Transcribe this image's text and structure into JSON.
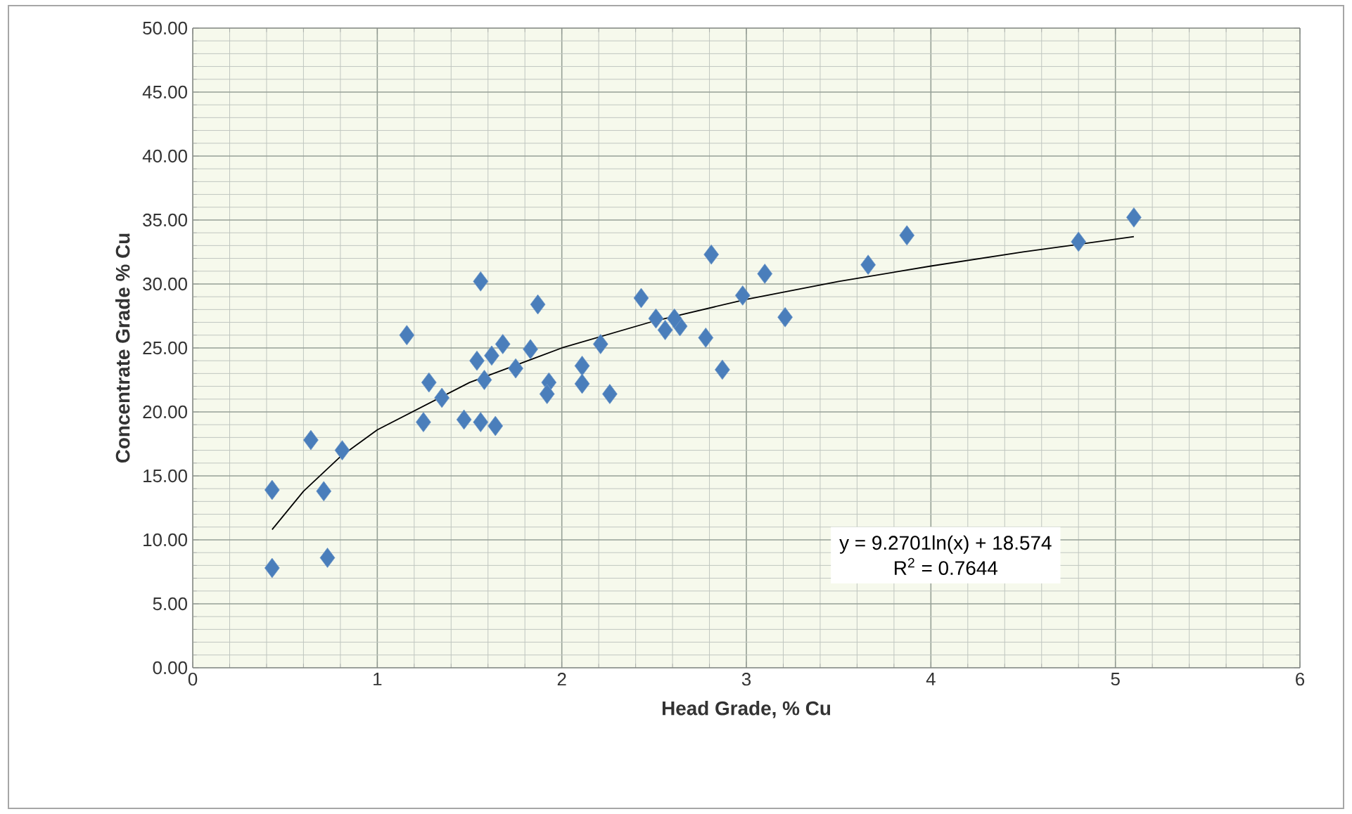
{
  "chart_data": {
    "type": "scatter",
    "xlabel": "Head Grade, % Cu",
    "ylabel": "Concentrate Grade % Cu",
    "xlim": [
      0,
      6
    ],
    "xticks": [
      0,
      1,
      2,
      3,
      4,
      5,
      6
    ],
    "ylim": [
      0,
      50
    ],
    "yticks": [
      {
        "value": 0,
        "label": "0.00"
      },
      {
        "value": 5,
        "label": "5.00"
      },
      {
        "value": 10,
        "label": "10.00"
      },
      {
        "value": 15,
        "label": "15.00"
      },
      {
        "value": 20,
        "label": "20.00"
      },
      {
        "value": 25,
        "label": "25.00"
      },
      {
        "value": 30,
        "label": "30.00"
      },
      {
        "value": 35,
        "label": "35.00"
      },
      {
        "value": 40,
        "label": "40.00"
      },
      {
        "value": 45,
        "label": "45.00"
      },
      {
        "value": 50,
        "label": "50.00"
      }
    ],
    "grid": true,
    "marker": "diamond",
    "annotations": [
      "y = 9.2701ln(x) + 18.574",
      "R$^{2}$ = 0.7644"
    ],
    "series": [
      {
        "color": "#4a7ebb",
        "x": [
          0.43,
          0.43,
          0.71,
          0.73,
          0.64,
          0.81,
          1.16,
          1.56,
          1.87,
          1.25,
          1.28,
          1.35,
          1.47,
          1.56,
          1.64,
          1.54,
          1.62,
          1.68,
          1.75,
          1.58,
          1.83,
          1.93,
          1.92,
          2.11,
          2.11,
          2.21,
          2.26,
          2.43,
          2.51,
          2.56,
          2.64,
          2.61,
          2.78,
          2.81,
          2.87,
          2.98,
          3.1,
          3.21,
          3.66,
          3.87,
          4.8,
          5.1
        ],
        "values": [
          13.9,
          7.8,
          13.8,
          8.6,
          17.8,
          17.0,
          26.0,
          30.2,
          28.4,
          19.2,
          22.3,
          21.1,
          19.4,
          19.2,
          18.9,
          24.0,
          24.4,
          25.3,
          23.4,
          22.5,
          24.9,
          22.3,
          21.4,
          23.6,
          22.2,
          25.3,
          21.4,
          28.9,
          27.3,
          26.4,
          26.7,
          27.3,
          25.8,
          32.3,
          23.3,
          29.1,
          30.8,
          27.4,
          31.5,
          33.8,
          33.3,
          35.2
        ]
      },
      {
        "type": "line",
        "color": "#000000",
        "marker": "none",
        "x": [
          0.43,
          0.6,
          0.8,
          1.0,
          1.5,
          2.0,
          2.5,
          3.0,
          3.5,
          4.0,
          4.5,
          5.1
        ],
        "values": [
          10.8,
          13.8,
          16.5,
          18.6,
          22.3,
          25.0,
          27.1,
          28.8,
          30.2,
          31.4,
          32.5,
          33.7
        ]
      }
    ]
  }
}
